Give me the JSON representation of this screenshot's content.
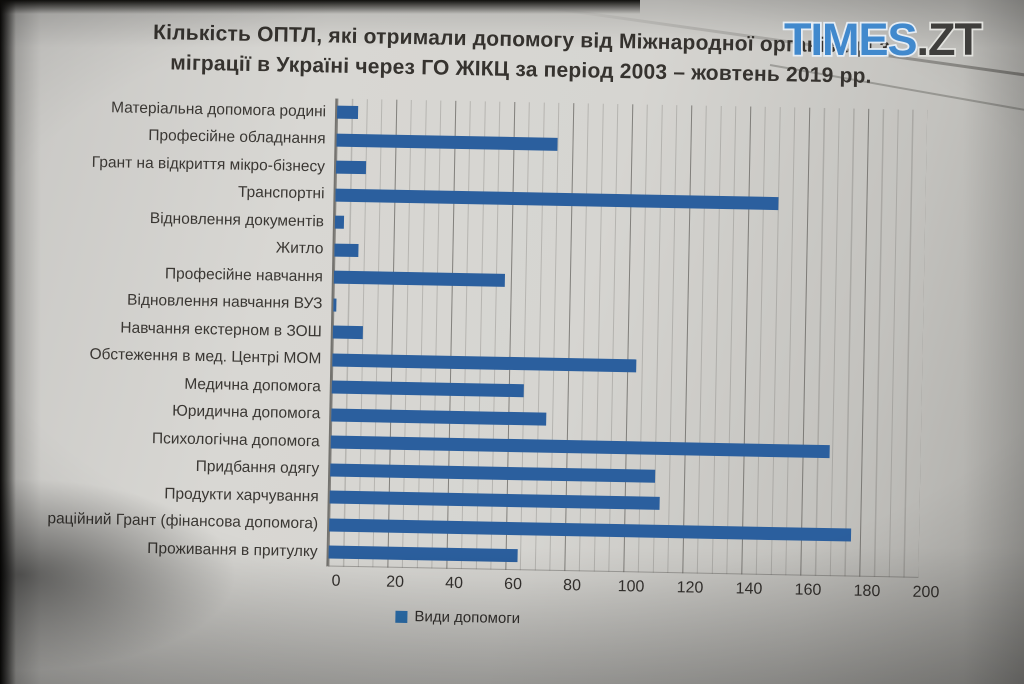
{
  "watermark": {
    "primary": "TIMES",
    "secondary": ".ZT"
  },
  "colors": {
    "bar": "#2b5f9e",
    "legend_marker": "#2e75b6",
    "watermark_primary": "#4189cd",
    "watermark_secondary": "#3f3e3c",
    "paper": "#d6d5d1"
  },
  "chart_data": {
    "type": "bar",
    "orientation": "horizontal",
    "title": "Кількість ОПТЛ, які отримали допомогу від Міжнародної організації з міграції в Україні через ГО ЖІКЦ за період 2003 – жовтень 2019 рр.",
    "categories": [
      "Матеріальна допомога родині",
      "Професійне обладнання",
      "Грант на відкриття мікро-бізнесу",
      "Транспортні",
      "Відновлення документів",
      "Житло",
      "Професійне навчання",
      "Відновлення навчання ВУЗ",
      "Навчання екстерном в ЗОШ",
      "Обстеження в мед. Центрі МОМ",
      "Медична допомога",
      "Юридична допомога",
      "Психологічна допомога",
      "Придбання одягу",
      "Продукти харчування",
      "раційний Грант (фінансова допомога)",
      "Проживання в притулку"
    ],
    "values": [
      7,
      75,
      10,
      150,
      3,
      8,
      58,
      1,
      10,
      103,
      65,
      73,
      169,
      110,
      112,
      177,
      64
    ],
    "xlim": [
      0,
      200
    ],
    "x_ticks": [
      0,
      20,
      40,
      60,
      80,
      100,
      120,
      140,
      160,
      180,
      200
    ],
    "grid": {
      "major_step": 20,
      "minor_step": 5,
      "gridlines": "vertical"
    },
    "legend": [
      {
        "label": "Види допомоги",
        "color": "#2e75b6"
      }
    ],
    "legend_position": "bottom",
    "bar_color": "#2b5f9e"
  }
}
